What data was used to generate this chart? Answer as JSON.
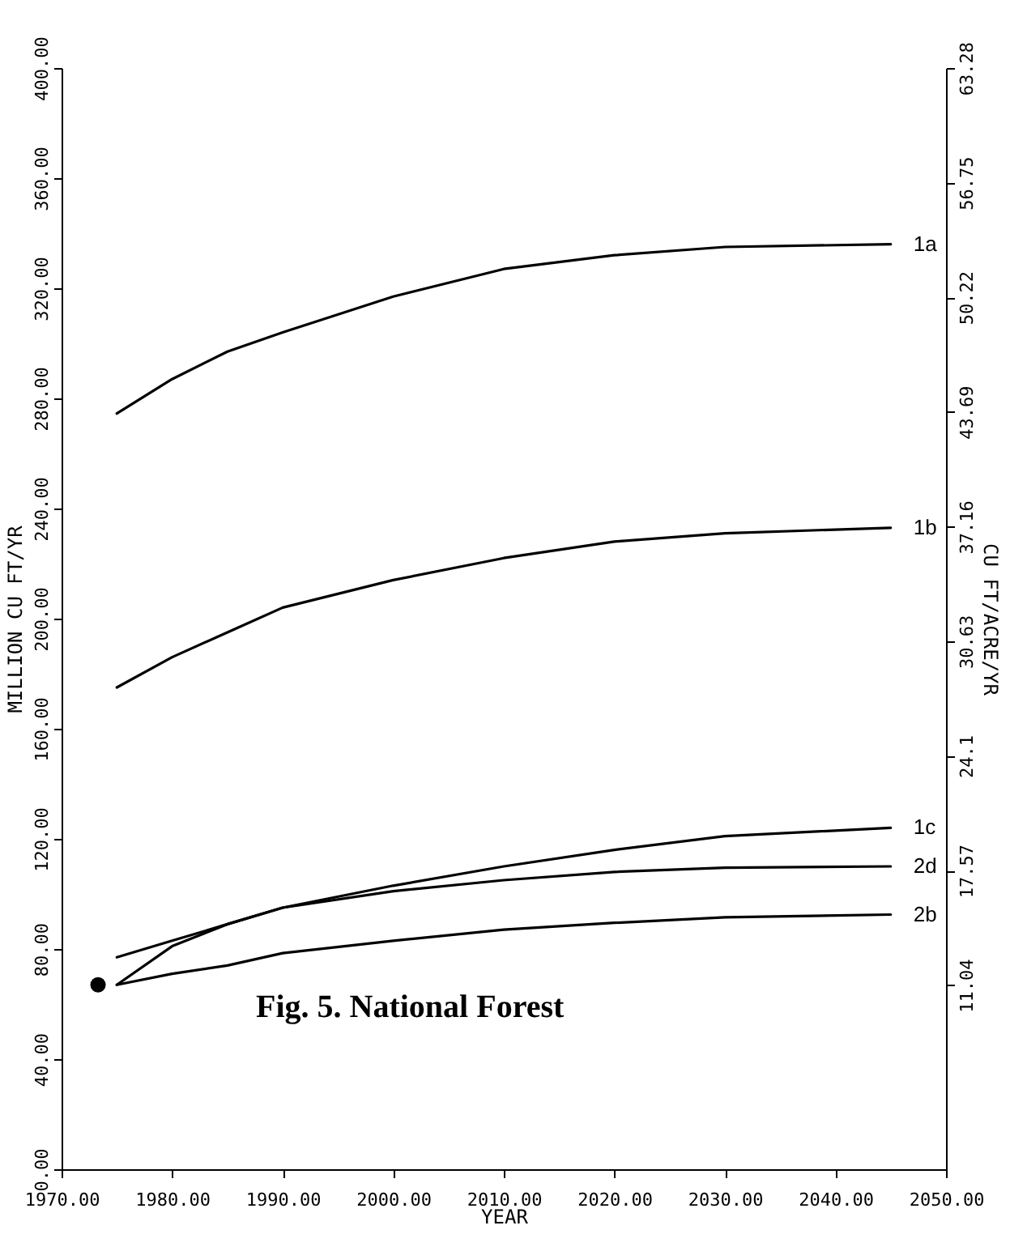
{
  "chart_data": {
    "type": "line",
    "xlabel": "YEAR",
    "ylabel": "MILLION CU FT/YR",
    "y2label": "CU FT/ACRE/YR",
    "annotations": [
      "Fig. 5. National Forest"
    ],
    "xlim": [
      1970,
      2050
    ],
    "xticks": [
      {
        "value": 1970,
        "label": "1970.00"
      },
      {
        "value": 1980,
        "label": "1980.00"
      },
      {
        "value": 1990,
        "label": "1990.00"
      },
      {
        "value": 2000,
        "label": "2000.00"
      },
      {
        "value": 2010,
        "label": "2010.00"
      },
      {
        "value": 2020,
        "label": "2020.00"
      },
      {
        "value": 2030,
        "label": "2030.00"
      },
      {
        "value": 2040,
        "label": "2040.00"
      },
      {
        "value": 2050,
        "label": "2050.00"
      }
    ],
    "ylim": [
      0,
      400
    ],
    "yticks": [
      {
        "value": 0,
        "label": "0.00"
      },
      {
        "value": 40,
        "label": "40.00"
      },
      {
        "value": 80,
        "label": "80.00"
      },
      {
        "value": 120,
        "label": "120.00"
      },
      {
        "value": 160,
        "label": "160.00"
      },
      {
        "value": 200,
        "label": "200.00"
      },
      {
        "value": 240,
        "label": "240.00"
      },
      {
        "value": 280,
        "label": "280.00"
      },
      {
        "value": 320,
        "label": "320.00"
      },
      {
        "value": 360,
        "label": "360.00"
      },
      {
        "value": 400,
        "label": "400.00"
      }
    ],
    "y2lim": [
      0.55,
      63.28
    ],
    "y2ticks": [
      11.04,
      17.57,
      24.1,
      30.63,
      37.16,
      43.69,
      50.22,
      56.75,
      63.28
    ],
    "x": [
      1975,
      1980,
      1985,
      1990,
      2000,
      2010,
      2020,
      2030,
      2045
    ],
    "grid": false,
    "legend": false,
    "series": [
      {
        "name": "1a",
        "color": "#000000",
        "values": [
          274.5,
          287,
          297,
          304,
          317,
          327,
          332,
          335,
          336
        ]
      },
      {
        "name": "1b",
        "color": "#000000",
        "values": [
          175,
          186,
          195,
          204,
          214,
          222,
          228,
          231,
          233
        ]
      },
      {
        "name": "1c",
        "color": "#000000",
        "values": [
          67,
          81,
          89,
          95,
          103,
          110,
          116,
          121,
          124
        ]
      },
      {
        "name": "2d",
        "color": "#000000",
        "values": [
          77,
          83,
          89,
          95,
          101,
          105,
          108,
          109.5,
          110
        ]
      },
      {
        "name": "2b",
        "color": "#000000",
        "values": [
          67,
          71,
          74,
          78.5,
          83,
          87,
          89.5,
          91.5,
          92.5
        ]
      },
      {
        "type": "scatter",
        "color": "#000000",
        "x": [
          1973.3
        ],
        "values": [
          67
        ]
      }
    ]
  }
}
